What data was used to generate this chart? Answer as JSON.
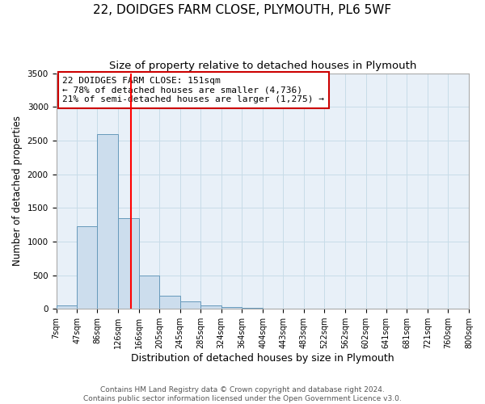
{
  "title": "22, DOIDGES FARM CLOSE, PLYMOUTH, PL6 5WF",
  "subtitle": "Size of property relative to detached houses in Plymouth",
  "xlabel": "Distribution of detached houses by size in Plymouth",
  "ylabel": "Number of detached properties",
  "bin_edges": [
    7,
    47,
    86,
    126,
    166,
    205,
    245,
    285,
    324,
    364,
    404,
    443,
    483,
    522,
    562,
    602,
    641,
    681,
    721,
    760,
    800
  ],
  "bin_counts": [
    50,
    1230,
    2590,
    1350,
    500,
    200,
    110,
    55,
    30,
    10,
    3,
    1,
    0,
    0,
    0,
    0,
    0,
    0,
    0,
    0
  ],
  "bar_color": "#ccdded",
  "bar_edge_color": "#6699bb",
  "property_line_x": 151,
  "property_line_color": "red",
  "annotation_line1": "22 DOIDGES FARM CLOSE: 151sqm",
  "annotation_line2": "← 78% of detached houses are smaller (4,736)",
  "annotation_line3": "21% of semi-detached houses are larger (1,275) →",
  "annotation_box_color": "white",
  "annotation_box_edge_color": "#cc0000",
  "ylim": [
    0,
    3500
  ],
  "yticks": [
    0,
    500,
    1000,
    1500,
    2000,
    2500,
    3000,
    3500
  ],
  "grid_color": "#c8dce8",
  "background_color": "#f0f4f8",
  "plot_bg_color": "#e8f0f8",
  "footer_line1": "Contains HM Land Registry data © Crown copyright and database right 2024.",
  "footer_line2": "Contains public sector information licensed under the Open Government Licence v3.0.",
  "tick_labels": [
    "7sqm",
    "47sqm",
    "86sqm",
    "126sqm",
    "166sqm",
    "205sqm",
    "245sqm",
    "285sqm",
    "324sqm",
    "364sqm",
    "404sqm",
    "443sqm",
    "483sqm",
    "522sqm",
    "562sqm",
    "602sqm",
    "641sqm",
    "681sqm",
    "721sqm",
    "760sqm",
    "800sqm"
  ],
  "title_fontsize": 11,
  "subtitle_fontsize": 9.5,
  "xlabel_fontsize": 9,
  "ylabel_fontsize": 8.5,
  "tick_fontsize": 7,
  "annotation_fontsize": 8,
  "footer_fontsize": 6.5
}
